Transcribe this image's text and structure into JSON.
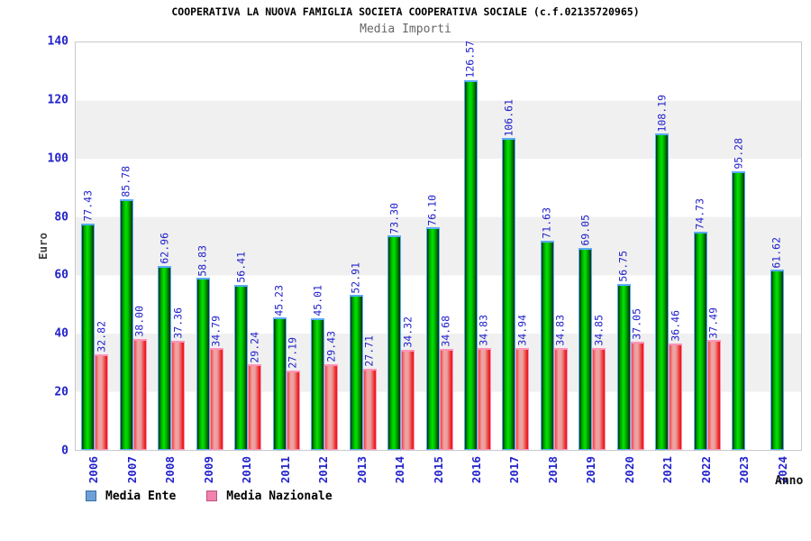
{
  "title": "COOPERATIVA LA NUOVA FAMIGLIA SOCIETA COOPERATIVA SOCIALE (c.f.02135720965)",
  "subtitle": "Media Importi",
  "axes": {
    "y_label": "Euro",
    "x_label": "Anno",
    "y_ticks": [
      0,
      20,
      40,
      60,
      80,
      100,
      120,
      140
    ]
  },
  "legend": [
    {
      "label": "Media Ente",
      "fill": "#6f9fd8",
      "border": "#3b6ea5"
    },
    {
      "label": "Media Nazionale",
      "fill": "#f083ae",
      "border": "#c05080"
    }
  ],
  "colors": {
    "bar_green": "#00cc00",
    "bar_red": "#ee3333",
    "label_blue": "#2222cc",
    "band_gray": "#f0f0f0"
  },
  "chart_data": {
    "type": "bar",
    "title": "Media Importi",
    "xlabel": "Anno",
    "ylabel": "Euro",
    "ylim": [
      0,
      140
    ],
    "grid": "horizontal-bands",
    "legend_position": "bottom",
    "categories": [
      "2006",
      "2007",
      "2008",
      "2009",
      "2010",
      "2011",
      "2012",
      "2013",
      "2014",
      "2015",
      "2016",
      "2017",
      "2018",
      "2019",
      "2020",
      "2021",
      "2022",
      "2023",
      "2024"
    ],
    "series": [
      {
        "name": "Media Ente",
        "values": [
          77.43,
          85.78,
          62.96,
          58.83,
          56.41,
          45.23,
          45.01,
          52.91,
          73.3,
          76.1,
          126.57,
          106.61,
          71.63,
          69.05,
          56.75,
          108.19,
          74.73,
          95.28,
          61.62
        ]
      },
      {
        "name": "Media Nazionale",
        "values": [
          32.82,
          38.0,
          37.36,
          34.79,
          29.24,
          27.19,
          29.43,
          27.71,
          34.32,
          34.68,
          34.83,
          34.94,
          34.83,
          34.85,
          37.05,
          36.46,
          37.49,
          null,
          null
        ]
      }
    ]
  }
}
